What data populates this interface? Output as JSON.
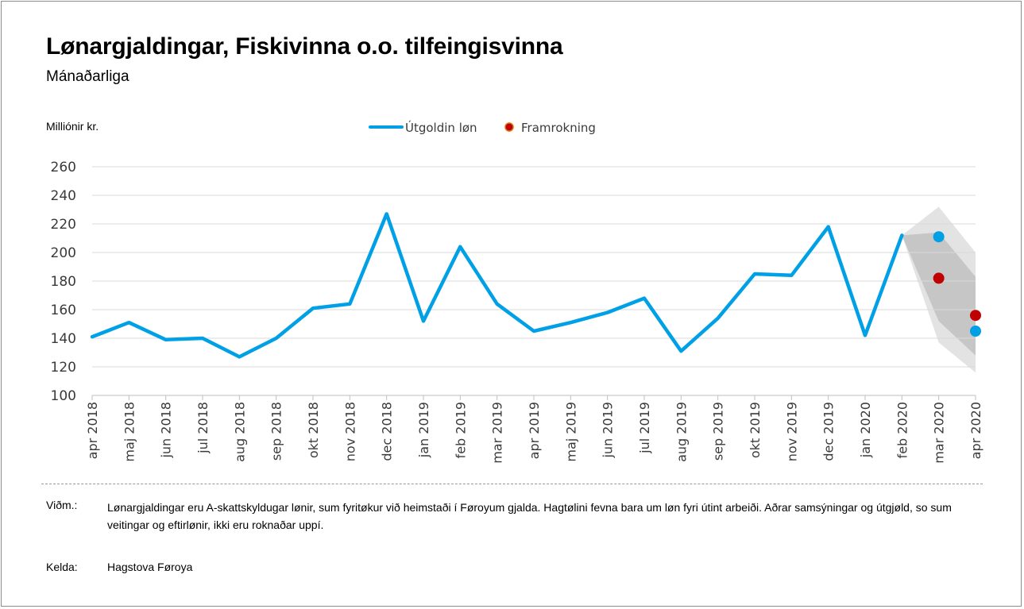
{
  "chart_data": {
    "type": "line",
    "title": "Lønargjaldingar, Fiskivinna o.o. tilfeingisvinna",
    "subtitle": "Mánaðarliga",
    "ylabel": "Milliónir kr.",
    "ylim": [
      100,
      260
    ],
    "yticks": [
      "100",
      "120",
      "140",
      "160",
      "180",
      "200",
      "220",
      "240",
      "260"
    ],
    "categories": [
      "apr 2018",
      "maj 2018",
      "jun 2018",
      "jul 2018",
      "aug 2018",
      "sep 2018",
      "okt 2018",
      "nov 2018",
      "dec 2018",
      "jan 2019",
      "feb 2019",
      "mar 2019",
      "apr 2019",
      "maj 2019",
      "jun 2019",
      "jul 2019",
      "aug 2019",
      "sep 2019",
      "okt 2019",
      "nov 2019",
      "dec 2019",
      "jan 2020",
      "feb 2020",
      "mar 2020",
      "apr 2020"
    ],
    "series": [
      {
        "name": "Útgoldin løn",
        "color": "#00a0e6",
        "values": [
          141,
          151,
          139,
          140,
          127,
          140,
          161,
          164,
          227,
          152,
          204,
          164,
          145,
          151,
          158,
          168,
          131,
          154,
          185,
          184,
          218,
          142,
          212,
          null,
          null
        ],
        "extra_points": [
          {
            "category": "mar 2020",
            "value": 211
          },
          {
            "category": "apr 2020",
            "value": 145
          }
        ]
      },
      {
        "name": "Framrokning",
        "color": "#c00000",
        "points": [
          {
            "category": "mar 2020",
            "value": 182
          },
          {
            "category": "apr 2020",
            "value": 156
          }
        ]
      }
    ],
    "fan_bands": [
      {
        "color": "#e3e3e3",
        "points": [
          {
            "category": "feb 2020",
            "low": 212,
            "high": 212
          },
          {
            "category": "mar 2020",
            "low": 137,
            "high": 232
          },
          {
            "category": "apr 2020",
            "low": 116,
            "high": 200
          }
        ]
      },
      {
        "color": "#c6c6c6",
        "points": [
          {
            "category": "feb 2020",
            "low": 212,
            "high": 212
          },
          {
            "category": "mar 2020",
            "low": 152,
            "high": 214
          },
          {
            "category": "apr 2020",
            "low": 128,
            "high": 183
          }
        ]
      }
    ],
    "legend": [
      "Útgoldin løn",
      "Framrokning"
    ],
    "grid": true
  },
  "footer": {
    "note_label": "Viðm.:",
    "note_text": "Lønargjaldingar eru A-skattskyldugar lønir, sum fyritøkur við heimstaði í Føroyum gjalda. Hagtølini fevna bara um løn fyri útint arbeiði. Aðrar samsýningar og útgjøld, so sum veitingar og eftirlønir, ikki eru roknaðar uppí.",
    "source_label": "Kelda:",
    "source_text": "Hagstova Føroya"
  },
  "colors": {
    "line": "#00a0e6",
    "forecast": "#c00000",
    "grid": "#d9d9d9"
  }
}
